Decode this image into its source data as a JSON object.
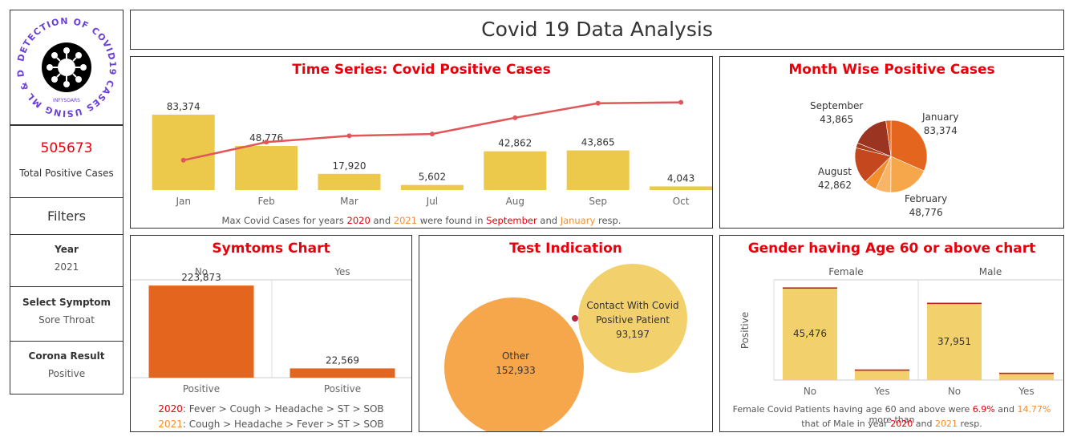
{
  "logo": {
    "ring_text": "DETECTION OF COVID19 CASES USING ML & DL",
    "sub_text": "INFYSOARS"
  },
  "sidebar": {
    "total_value": "505673",
    "total_label": "Total Positive Cases",
    "filters_label": "Filters",
    "year_label": "Year",
    "year_value": "2021",
    "symptom_label": "Select Symptom",
    "symptom_value": "Sore Throat",
    "result_label": "Corona Result",
    "result_value": "Positive"
  },
  "header": {
    "title": "Covid 19 Data Analysis"
  },
  "time_series": {
    "title": "Time Series: Covid Positive Cases",
    "note": {
      "prefix": "Max Covid Cases for years ",
      "y1": "2020",
      "and1": " and ",
      "y2": "2021",
      "mid": " were found in ",
      "m1": "September",
      "and2": " and ",
      "m2": "January",
      "suffix": " resp."
    }
  },
  "month_wise": {
    "title": "Month Wise Positive Cases",
    "labels": [
      {
        "name": "September",
        "value": "43,865"
      },
      {
        "name": "January",
        "value": "83,374"
      },
      {
        "name": "August",
        "value": "42,862"
      },
      {
        "name": "February",
        "value": "48,776"
      }
    ]
  },
  "symptoms": {
    "title": "Symtoms Chart",
    "legend_2020_year": "2020",
    "legend_2020_text": ": Fever > Cough > Headache > ST > SOB",
    "legend_2021_year": "2021",
    "legend_2021_text": ": Cough > Headache > Fever > ST > SOB"
  },
  "test_indication": {
    "title": "Test Indication",
    "other_label": "Other",
    "other_value": "152,933",
    "contact_label_1": "Contact With Covid",
    "contact_label_2": "Positive Patient",
    "contact_value": "93,197"
  },
  "gender": {
    "title": "Gender having Age 60 or above chart",
    "note": {
      "p1": "Female Covid Patients having age 60 and above were ",
      "v1": "6.9%",
      "p2": "  and  ",
      "v2": "14.77%",
      "p3": " more than",
      "p4": "that of Male in year ",
      "y1": "2020",
      "p5": " and ",
      "y2": "2021",
      "p6": " resp."
    }
  },
  "colors": {
    "bar_yellow": "#ecc94b",
    "line_red": "#e15759",
    "bar_orange": "#e4661e",
    "bubble_orange": "#f6a64b",
    "bubble_yellow": "#f2d06b",
    "gender_bar": "#f2d06b",
    "title_red": "#e8000b",
    "accent_orange": "#f28e2b"
  },
  "chart_data": [
    {
      "type": "bar",
      "title": "Time Series: Covid Positive Cases",
      "categories": [
        "Jan",
        "Feb",
        "Mar",
        "Jul",
        "Aug",
        "Sep",
        "Oct"
      ],
      "values": [
        83374,
        48776,
        17920,
        5602,
        42862,
        43865,
        4043
      ],
      "value_labels": [
        "83,374",
        "48,776",
        "17,920",
        "5,602",
        "42,862",
        "43,865",
        "4,043"
      ],
      "line_series": {
        "values": [
          33000,
          53000,
          60000,
          62000,
          80000,
          96000,
          97000
        ]
      },
      "ylim": [
        0,
        110000
      ],
      "grid": false
    },
    {
      "type": "pie",
      "title": "Month Wise Positive Cases",
      "slices": [
        {
          "label": "January",
          "value": 83374,
          "color": "#e4661e"
        },
        {
          "label": "February",
          "value": 48776,
          "color": "#f6a64b"
        },
        {
          "label": "Other",
          "value": 18000,
          "color": "#f8b568"
        },
        {
          "label": "Other",
          "value": 15000,
          "color": "#f28e2b"
        },
        {
          "label": "August",
          "value": 42862,
          "color": "#c4471e"
        },
        {
          "label": "Other",
          "value": 6000,
          "color": "#a63a1a"
        },
        {
          "label": "September",
          "value": 43865,
          "color": "#9b3522"
        },
        {
          "label": "Other",
          "value": 6000,
          "color": "#e4661e"
        }
      ]
    },
    {
      "type": "bar",
      "title": "Symtoms Chart",
      "panels": [
        "No",
        "Yes"
      ],
      "categories": [
        "Positive",
        "Positive"
      ],
      "values": [
        223873,
        22569
      ],
      "value_labels": [
        "223,873",
        "22,569"
      ],
      "ylim": [
        0,
        260000
      ]
    },
    {
      "type": "scatter",
      "title": "Test Indication",
      "series": [
        {
          "name": "Other",
          "values": [
            152933
          ]
        },
        {
          "name": "Contact With Covid Positive Patient",
          "values": [
            93197
          ]
        }
      ]
    },
    {
      "type": "bar",
      "title": "Gender having Age 60 or above chart",
      "panels": [
        "Female",
        "Male"
      ],
      "ylabel": "Positive",
      "categories": [
        "No",
        "Yes",
        "No",
        "Yes"
      ],
      "values": [
        45476,
        5200,
        37951,
        3600
      ],
      "value_labels": [
        "45,476",
        "",
        "37,951",
        ""
      ],
      "ylim": [
        0,
        48000
      ]
    }
  ]
}
